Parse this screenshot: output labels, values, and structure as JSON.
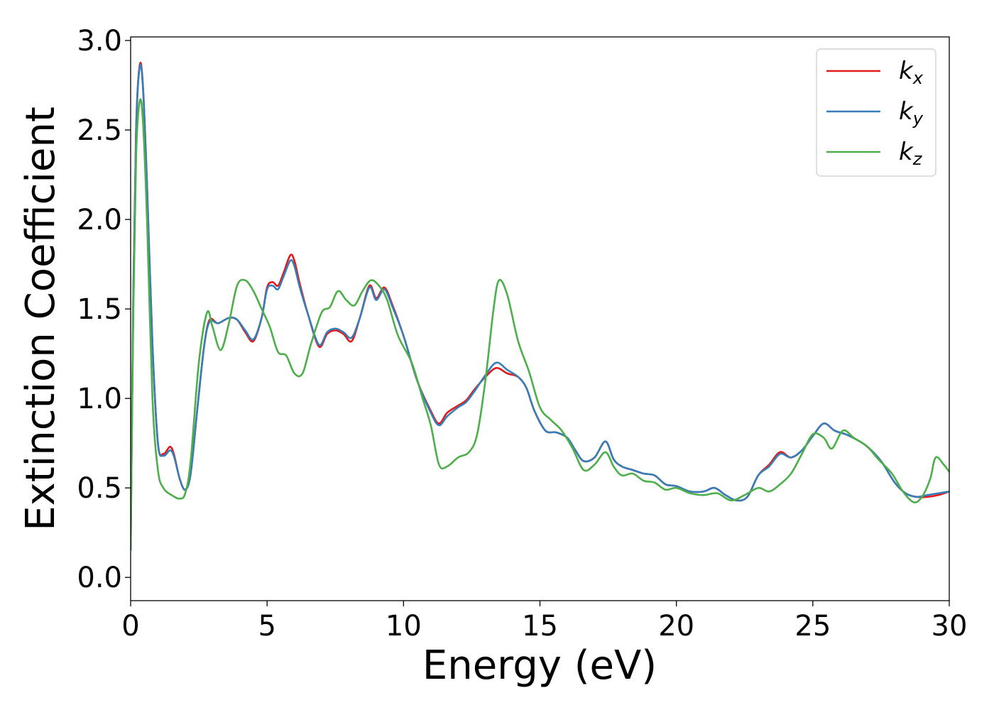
{
  "chart_data": {
    "type": "line",
    "title": "",
    "xlabel": "Energy (eV)",
    "ylabel": "Extinction Coefficient",
    "xlim": [
      0,
      30
    ],
    "ylim": [
      -0.13,
      3.02
    ],
    "xticks": [
      0,
      5,
      10,
      15,
      20,
      25,
      30
    ],
    "xtick_labels": [
      "0",
      "5",
      "10",
      "15",
      "20",
      "25",
      "30"
    ],
    "yticks": [
      0.0,
      0.5,
      1.0,
      1.5,
      2.0,
      2.5,
      3.0
    ],
    "ytick_labels": [
      "0.0",
      "0.5",
      "1.0",
      "1.5",
      "2.0",
      "2.5",
      "3.0"
    ],
    "grid": false,
    "legend_position": "top-right",
    "series": [
      {
        "name": "k_x",
        "label_main": "k",
        "label_sub": "x",
        "color": "#e41a1c",
        "points": [
          [
            0,
            0.15
          ],
          [
            0.1,
            1.6
          ],
          [
            0.2,
            2.5
          ],
          [
            0.33,
            2.86
          ],
          [
            0.45,
            2.75
          ],
          [
            0.6,
            2.2
          ],
          [
            0.8,
            1.3
          ],
          [
            1.0,
            0.75
          ],
          [
            1.2,
            0.69
          ],
          [
            1.45,
            0.73
          ],
          [
            1.6,
            0.68
          ],
          [
            1.8,
            0.55
          ],
          [
            2.0,
            0.49
          ],
          [
            2.2,
            0.58
          ],
          [
            2.45,
            0.95
          ],
          [
            2.7,
            1.3
          ],
          [
            2.9,
            1.44
          ],
          [
            3.2,
            1.42
          ],
          [
            3.6,
            1.45
          ],
          [
            3.9,
            1.44
          ],
          [
            4.2,
            1.37
          ],
          [
            4.5,
            1.32
          ],
          [
            4.8,
            1.45
          ],
          [
            5.0,
            1.62
          ],
          [
            5.2,
            1.65
          ],
          [
            5.4,
            1.63
          ],
          [
            5.6,
            1.7
          ],
          [
            5.85,
            1.8
          ],
          [
            6.0,
            1.77
          ],
          [
            6.2,
            1.64
          ],
          [
            6.5,
            1.47
          ],
          [
            6.9,
            1.29
          ],
          [
            7.2,
            1.36
          ],
          [
            7.5,
            1.38
          ],
          [
            7.8,
            1.36
          ],
          [
            8.1,
            1.32
          ],
          [
            8.4,
            1.45
          ],
          [
            8.75,
            1.63
          ],
          [
            9.0,
            1.56
          ],
          [
            9.3,
            1.62
          ],
          [
            9.6,
            1.52
          ],
          [
            10.0,
            1.35
          ],
          [
            10.5,
            1.1
          ],
          [
            11.0,
            0.93
          ],
          [
            11.3,
            0.86
          ],
          [
            11.6,
            0.92
          ],
          [
            12.0,
            0.96
          ],
          [
            12.3,
            0.99
          ],
          [
            12.6,
            1.05
          ],
          [
            13.0,
            1.12
          ],
          [
            13.4,
            1.17
          ],
          [
            13.8,
            1.14
          ],
          [
            14.2,
            1.12
          ],
          [
            14.5,
            1.06
          ],
          [
            14.8,
            0.93
          ],
          [
            15.2,
            0.82
          ],
          [
            15.6,
            0.81
          ],
          [
            16.0,
            0.78
          ],
          [
            16.3,
            0.71
          ],
          [
            16.6,
            0.65
          ],
          [
            17.0,
            0.67
          ],
          [
            17.4,
            0.76
          ],
          [
            17.7,
            0.66
          ],
          [
            18.0,
            0.62
          ],
          [
            18.4,
            0.6
          ],
          [
            18.8,
            0.58
          ],
          [
            19.2,
            0.57
          ],
          [
            19.6,
            0.52
          ],
          [
            20.0,
            0.51
          ],
          [
            20.5,
            0.48
          ],
          [
            21.0,
            0.48
          ],
          [
            21.4,
            0.5
          ],
          [
            21.8,
            0.46
          ],
          [
            22.2,
            0.43
          ],
          [
            22.6,
            0.45
          ],
          [
            23.0,
            0.57
          ],
          [
            23.4,
            0.63
          ],
          [
            23.8,
            0.7
          ],
          [
            24.2,
            0.67
          ],
          [
            24.6,
            0.71
          ],
          [
            25.0,
            0.79
          ],
          [
            25.4,
            0.86
          ],
          [
            25.8,
            0.82
          ],
          [
            26.2,
            0.8
          ],
          [
            26.6,
            0.77
          ],
          [
            27.0,
            0.73
          ],
          [
            27.5,
            0.65
          ],
          [
            28.0,
            0.53
          ],
          [
            28.4,
            0.47
          ],
          [
            28.8,
            0.45
          ],
          [
            29.2,
            0.45
          ],
          [
            29.6,
            0.46
          ],
          [
            30.0,
            0.48
          ]
        ]
      },
      {
        "name": "k_y",
        "label_main": "k",
        "label_sub": "y",
        "color": "#377eb8",
        "points": [
          [
            0,
            0.15
          ],
          [
            0.1,
            1.6
          ],
          [
            0.2,
            2.5
          ],
          [
            0.33,
            2.85
          ],
          [
            0.45,
            2.74
          ],
          [
            0.6,
            2.19
          ],
          [
            0.8,
            1.3
          ],
          [
            1.0,
            0.75
          ],
          [
            1.2,
            0.68
          ],
          [
            1.45,
            0.71
          ],
          [
            1.6,
            0.67
          ],
          [
            1.8,
            0.55
          ],
          [
            2.0,
            0.49
          ],
          [
            2.2,
            0.58
          ],
          [
            2.45,
            0.95
          ],
          [
            2.7,
            1.3
          ],
          [
            2.9,
            1.43
          ],
          [
            3.2,
            1.42
          ],
          [
            3.6,
            1.45
          ],
          [
            3.9,
            1.44
          ],
          [
            4.2,
            1.38
          ],
          [
            4.5,
            1.33
          ],
          [
            4.8,
            1.45
          ],
          [
            5.0,
            1.61
          ],
          [
            5.2,
            1.63
          ],
          [
            5.4,
            1.61
          ],
          [
            5.6,
            1.68
          ],
          [
            5.85,
            1.77
          ],
          [
            6.0,
            1.74
          ],
          [
            6.2,
            1.62
          ],
          [
            6.5,
            1.47
          ],
          [
            6.9,
            1.3
          ],
          [
            7.2,
            1.37
          ],
          [
            7.5,
            1.39
          ],
          [
            7.8,
            1.37
          ],
          [
            8.1,
            1.34
          ],
          [
            8.4,
            1.45
          ],
          [
            8.75,
            1.62
          ],
          [
            9.0,
            1.55
          ],
          [
            9.3,
            1.61
          ],
          [
            9.6,
            1.51
          ],
          [
            10.0,
            1.35
          ],
          [
            10.5,
            1.1
          ],
          [
            11.0,
            0.92
          ],
          [
            11.3,
            0.85
          ],
          [
            11.6,
            0.9
          ],
          [
            12.0,
            0.95
          ],
          [
            12.3,
            0.98
          ],
          [
            12.6,
            1.04
          ],
          [
            13.0,
            1.13
          ],
          [
            13.4,
            1.2
          ],
          [
            13.8,
            1.16
          ],
          [
            14.2,
            1.12
          ],
          [
            14.5,
            1.06
          ],
          [
            14.8,
            0.93
          ],
          [
            15.2,
            0.82
          ],
          [
            15.6,
            0.81
          ],
          [
            16.0,
            0.78
          ],
          [
            16.3,
            0.71
          ],
          [
            16.6,
            0.65
          ],
          [
            17.0,
            0.67
          ],
          [
            17.4,
            0.76
          ],
          [
            17.7,
            0.66
          ],
          [
            18.0,
            0.62
          ],
          [
            18.4,
            0.6
          ],
          [
            18.8,
            0.58
          ],
          [
            19.2,
            0.57
          ],
          [
            19.6,
            0.52
          ],
          [
            20.0,
            0.51
          ],
          [
            20.5,
            0.48
          ],
          [
            21.0,
            0.48
          ],
          [
            21.4,
            0.5
          ],
          [
            21.8,
            0.46
          ],
          [
            22.2,
            0.43
          ],
          [
            22.6,
            0.45
          ],
          [
            23.0,
            0.57
          ],
          [
            23.4,
            0.62
          ],
          [
            23.8,
            0.69
          ],
          [
            24.2,
            0.67
          ],
          [
            24.6,
            0.71
          ],
          [
            25.0,
            0.79
          ],
          [
            25.4,
            0.86
          ],
          [
            25.8,
            0.82
          ],
          [
            26.2,
            0.8
          ],
          [
            26.6,
            0.77
          ],
          [
            27.0,
            0.73
          ],
          [
            27.5,
            0.65
          ],
          [
            28.0,
            0.53
          ],
          [
            28.4,
            0.47
          ],
          [
            28.8,
            0.45
          ],
          [
            29.2,
            0.46
          ],
          [
            29.6,
            0.47
          ],
          [
            30.0,
            0.48
          ]
        ]
      },
      {
        "name": "k_z",
        "label_main": "k",
        "label_sub": "z",
        "color": "#4daf4a",
        "points": [
          [
            0,
            0.15
          ],
          [
            0.1,
            1.5
          ],
          [
            0.2,
            2.35
          ],
          [
            0.33,
            2.66
          ],
          [
            0.45,
            2.55
          ],
          [
            0.6,
            2.0
          ],
          [
            0.8,
            1.0
          ],
          [
            1.0,
            0.6
          ],
          [
            1.2,
            0.5
          ],
          [
            1.5,
            0.46
          ],
          [
            1.8,
            0.44
          ],
          [
            2.0,
            0.47
          ],
          [
            2.2,
            0.65
          ],
          [
            2.5,
            1.2
          ],
          [
            2.8,
            1.48
          ],
          [
            3.0,
            1.4
          ],
          [
            3.3,
            1.27
          ],
          [
            3.6,
            1.42
          ],
          [
            3.9,
            1.63
          ],
          [
            4.2,
            1.66
          ],
          [
            4.5,
            1.6
          ],
          [
            4.8,
            1.5
          ],
          [
            5.1,
            1.4
          ],
          [
            5.4,
            1.26
          ],
          [
            5.7,
            1.24
          ],
          [
            6.0,
            1.14
          ],
          [
            6.3,
            1.14
          ],
          [
            6.6,
            1.3
          ],
          [
            7.0,
            1.48
          ],
          [
            7.3,
            1.51
          ],
          [
            7.6,
            1.6
          ],
          [
            7.9,
            1.55
          ],
          [
            8.2,
            1.52
          ],
          [
            8.5,
            1.6
          ],
          [
            8.8,
            1.66
          ],
          [
            9.1,
            1.63
          ],
          [
            9.4,
            1.55
          ],
          [
            9.8,
            1.35
          ],
          [
            10.3,
            1.2
          ],
          [
            10.7,
            1.0
          ],
          [
            11.0,
            0.85
          ],
          [
            11.3,
            0.63
          ],
          [
            11.6,
            0.62
          ],
          [
            12.0,
            0.67
          ],
          [
            12.4,
            0.7
          ],
          [
            12.7,
            0.8
          ],
          [
            13.0,
            1.1
          ],
          [
            13.3,
            1.5
          ],
          [
            13.5,
            1.66
          ],
          [
            13.8,
            1.58
          ],
          [
            14.2,
            1.32
          ],
          [
            14.6,
            1.15
          ],
          [
            15.0,
            0.95
          ],
          [
            15.4,
            0.88
          ],
          [
            15.8,
            0.82
          ],
          [
            16.2,
            0.72
          ],
          [
            16.6,
            0.6
          ],
          [
            17.0,
            0.63
          ],
          [
            17.4,
            0.7
          ],
          [
            17.7,
            0.62
          ],
          [
            18.0,
            0.57
          ],
          [
            18.4,
            0.58
          ],
          [
            18.8,
            0.54
          ],
          [
            19.2,
            0.53
          ],
          [
            19.6,
            0.49
          ],
          [
            20.0,
            0.5
          ],
          [
            20.5,
            0.47
          ],
          [
            21.0,
            0.46
          ],
          [
            21.5,
            0.47
          ],
          [
            22.0,
            0.43
          ],
          [
            22.5,
            0.46
          ],
          [
            23.0,
            0.5
          ],
          [
            23.4,
            0.48
          ],
          [
            23.8,
            0.52
          ],
          [
            24.2,
            0.58
          ],
          [
            24.6,
            0.69
          ],
          [
            25.0,
            0.8
          ],
          [
            25.4,
            0.78
          ],
          [
            25.7,
            0.72
          ],
          [
            26.1,
            0.82
          ],
          [
            26.5,
            0.78
          ],
          [
            27.0,
            0.73
          ],
          [
            27.4,
            0.66
          ],
          [
            27.9,
            0.58
          ],
          [
            28.3,
            0.48
          ],
          [
            28.7,
            0.42
          ],
          [
            29.0,
            0.45
          ],
          [
            29.3,
            0.55
          ],
          [
            29.5,
            0.67
          ],
          [
            29.8,
            0.63
          ],
          [
            30.0,
            0.59
          ]
        ]
      }
    ]
  }
}
